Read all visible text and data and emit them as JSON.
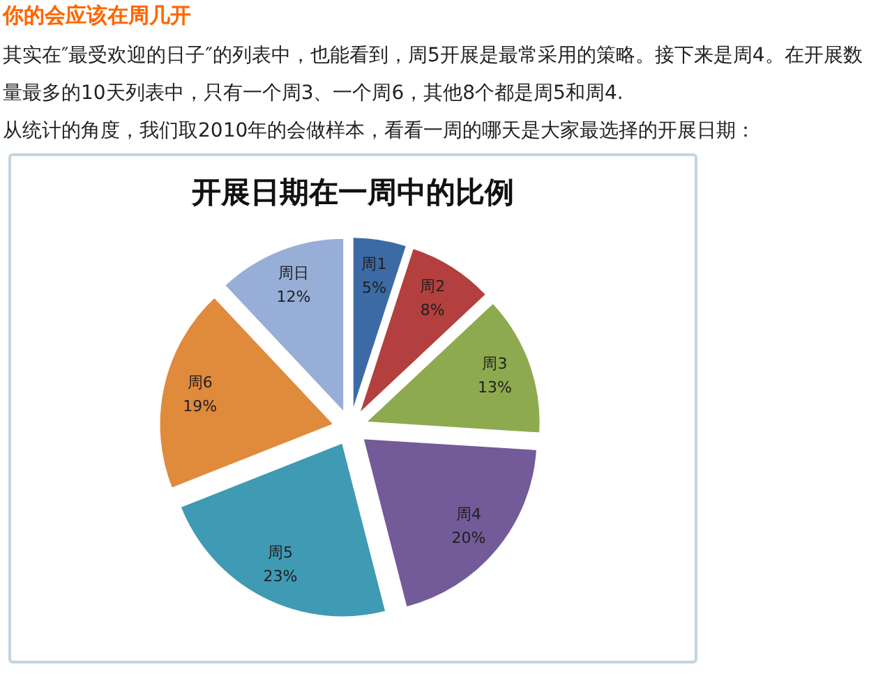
{
  "chart_data": {
    "type": "pie",
    "title": "开展日期在一周中的比例",
    "annotations": [
      "你的会应该在周几开",
      "其实在″最受欢迎的日子″的列表中，也能看到，周5开展是最常采用的策略。接下来是周4。在开展数量最多的10天列表中，只有一个周3、一个周6，其他8个都是周5和周4.",
      "从统计的角度，我们取2010年的会做样本，看看一周的哪天是大家最选择的开展日期："
    ],
    "categories": [
      "周1",
      "周2",
      "周3",
      "周4",
      "周5",
      "周6",
      "周日"
    ],
    "values": [
      5,
      8,
      13,
      20,
      23,
      19,
      12
    ],
    "value_labels": [
      "5%",
      "8%",
      "13%",
      "20%",
      "23%",
      "19%",
      "12%"
    ],
    "colors": [
      "#3c6aa5",
      "#b3403e",
      "#8eaa4f",
      "#735a98",
      "#3f9ab3",
      "#e08a3c",
      "#97aed6"
    ]
  }
}
